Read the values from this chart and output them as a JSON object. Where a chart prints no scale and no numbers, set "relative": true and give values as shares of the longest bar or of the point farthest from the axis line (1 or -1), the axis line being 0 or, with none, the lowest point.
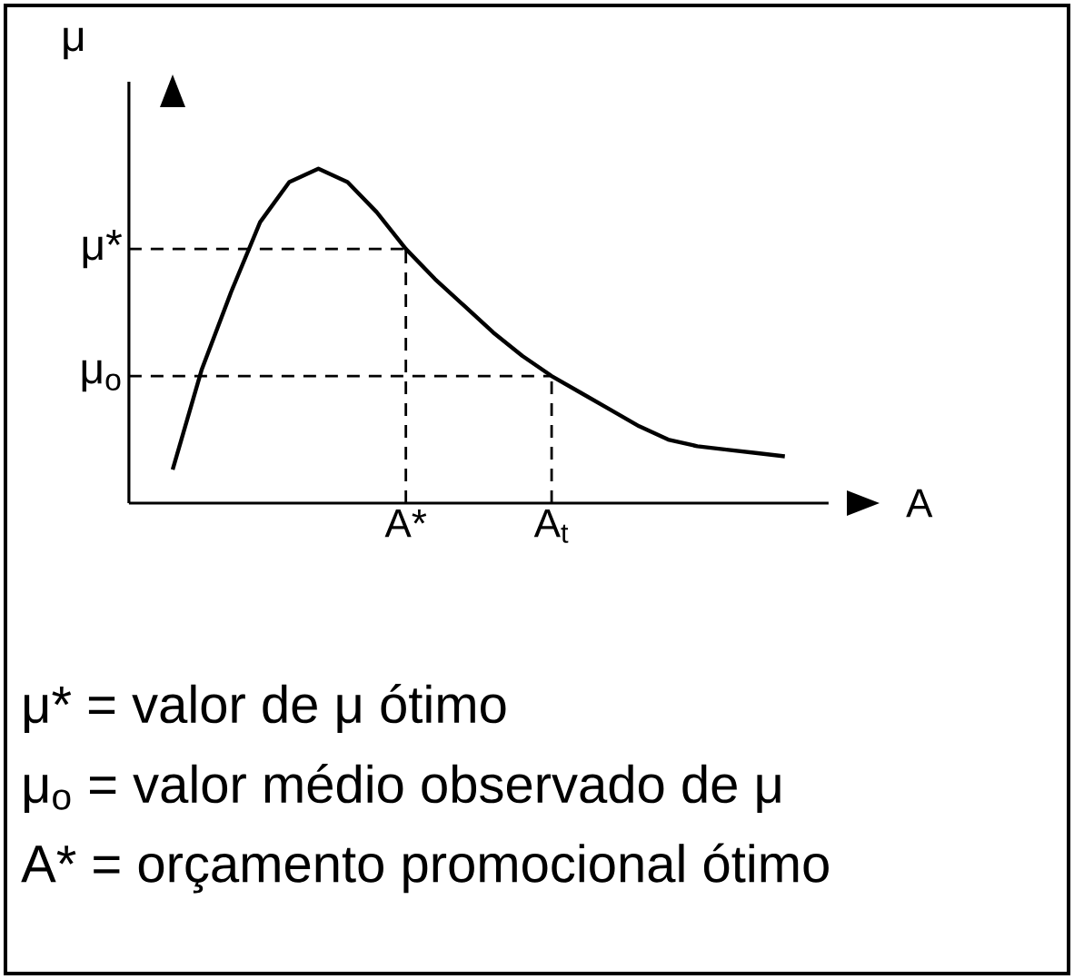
{
  "chart_data": {
    "type": "line",
    "relative": true,
    "xlabel": "A",
    "ylabel": "μ",
    "categories": [
      null,
      null,
      null,
      null,
      null,
      null,
      null,
      null,
      "A*",
      null,
      null,
      null,
      null,
      "A$_{t}$",
      null,
      null,
      null,
      null,
      null,
      null,
      null,
      null
    ],
    "series": [
      {
        "color": "#000000",
        "values": [
          0.1,
          0.4,
          0.63,
          0.84,
          0.96,
          1.0,
          0.96,
          0.87,
          0.76,
          0.67,
          0.59,
          0.51,
          0.44,
          0.38,
          0.33,
          0.28,
          0.23,
          0.19,
          0.17,
          0.16,
          0.15,
          0.14
        ]
      }
    ],
    "ref_lines": [
      {
        "axis": "y",
        "value": 0.76,
        "label": "μ*",
        "line_style": "dashed"
      },
      {
        "axis": "y",
        "value": 0.38,
        "label": "μ$_{o}$",
        "line_style": "dashed"
      },
      {
        "axis": "x",
        "value": "A*",
        "line_style": "dashed"
      },
      {
        "axis": "x",
        "value": "A$_{t}$",
        "line_style": "dashed"
      }
    ],
    "annotations": [
      "μ* = valor de μ ótimo",
      "μ$_{o}$ = valor médio observado de μ",
      "A* = orçamento promocional ótimo"
    ]
  }
}
